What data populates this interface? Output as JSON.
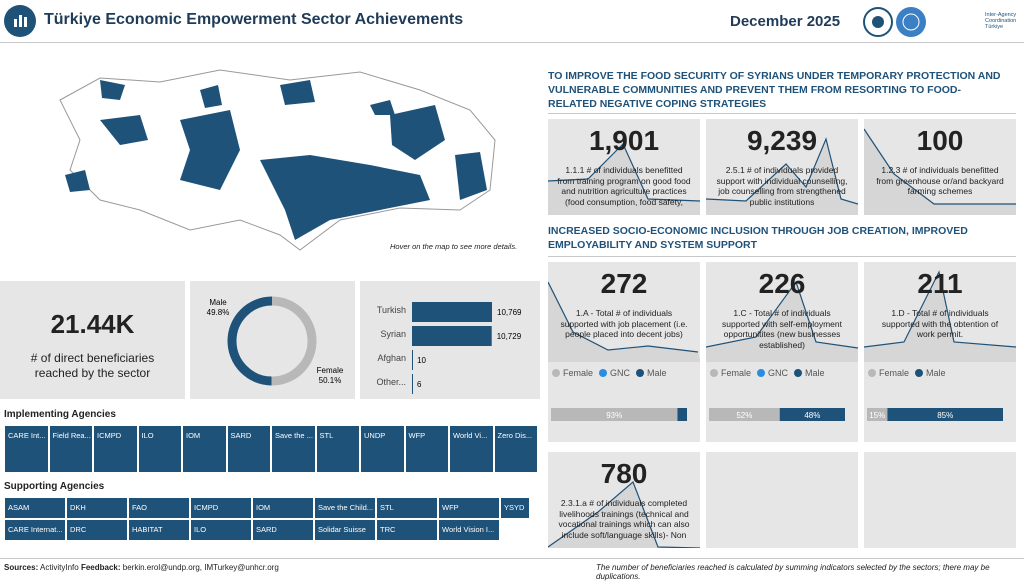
{
  "header": {
    "title": "Türkiye Economic Empowerment Sector Achievements",
    "date": "December 2025",
    "logo_text": "Inter-Agency Coordination Türkiye"
  },
  "map": {
    "note": "Hover on the map to see more details."
  },
  "total": {
    "value": "21.44K",
    "label": "# of direct beneficiaries reached by the sector"
  },
  "gender_chart": {
    "type": "pie",
    "categories": [
      "Male",
      "Female"
    ],
    "values": [
      49.8,
      50.1
    ],
    "value_labels": [
      "49.8%",
      "50.1%"
    ],
    "colors": [
      "#1f5279",
      "#b8b8b8"
    ]
  },
  "nationality_chart": {
    "type": "bar",
    "categories": [
      "Turkish",
      "Syrian",
      "Afghan",
      "Other..."
    ],
    "values": [
      10769,
      10729,
      10,
      6
    ],
    "value_labels": [
      "10,769",
      "10,729",
      "10",
      "6"
    ],
    "color": "#1f5279"
  },
  "implementing": {
    "title": "Implementing Agencies",
    "items": [
      "CARE Int...",
      "Field Rea...",
      "ICMPD",
      "ILO",
      "IOM",
      "SARD",
      "Save the ...",
      "STL",
      "UNDP",
      "WFP",
      "World Vi...",
      "Zero Dis..."
    ]
  },
  "supporting": {
    "title": "Supporting Agencies",
    "rows": [
      [
        "ASAM",
        "DKH",
        "FAO",
        "ICMPD",
        "IOM",
        "Save the Child...",
        "STL",
        "WFP",
        "YSYD"
      ],
      [
        "CARE Internat...",
        "DRC",
        "HABITAT",
        "ILO",
        "SARD",
        "Solidar Suisse",
        "TRC",
        "World Vision I..."
      ]
    ]
  },
  "sections": [
    {
      "title": "TO IMPROVE THE FOOD SECURITY OF SYRIANS UNDER TEMPORARY PROTECTION AND VULNERABLE COMMUNITIES AND PREVENT THEM FROM RESORTING TO FOOD-RELATED NEGATIVE COPING STRATEGIES",
      "cards": [
        {
          "value": "1,901",
          "label": "1.1.1 # of individuals benefitted from training program on good food and nutrition agriculture practices (food consumption, food safety, nutrition, cooking demonstration)"
        },
        {
          "value": "9,239",
          "label": "2.5.1 # of individuals provided support with individual counselling, job counselling from strengthened public institutions"
        },
        {
          "value": "100",
          "label": "1.2.3 # of individuals benefitted from greenhouse or/and backyard farming schemes"
        }
      ]
    },
    {
      "title": "INCREASED SOCIO-ECONOMIC INCLUSION THROUGH JOB CREATION, IMPROVED EMPLOYABILITY AND SYSTEM SUPPORT",
      "cards": [
        {
          "value": "272",
          "label": "1.A - Total # of individuals supported with job placement (i.e. people placed into decent jobs)",
          "legend": [
            {
              "name": "Female",
              "color": "#b8b8b8"
            },
            {
              "name": "GNC",
              "color": "#2a8de0"
            },
            {
              "name": "Male",
              "color": "#1f5279"
            }
          ],
          "bar": {
            "type": "bar",
            "values": [
              93,
              7
            ],
            "value_labels": [
              "93%",
              null
            ],
            "colors": [
              "#b8b8b8",
              "#1f5279"
            ]
          }
        },
        {
          "value": "226",
          "label": "1.C - Total # of individuals supported with self-employment opportunitites (new businesses established)",
          "legend": [
            {
              "name": "Female",
              "color": "#b8b8b8"
            },
            {
              "name": "GNC",
              "color": "#2a8de0"
            },
            {
              "name": "Male",
              "color": "#1f5279"
            }
          ],
          "bar": {
            "type": "bar",
            "values": [
              52,
              48
            ],
            "value_labels": [
              "52%",
              "48%"
            ],
            "colors": [
              "#b8b8b8",
              "#1f5279"
            ]
          }
        },
        {
          "value": "211",
          "label": "1.D - Total # of individuals supported with the obtention of work permit.",
          "legend": [
            {
              "name": "Female",
              "color": "#b8b8b8"
            },
            {
              "name": "Male",
              "color": "#1f5279"
            }
          ],
          "bar": {
            "type": "bar",
            "values": [
              15,
              85
            ],
            "value_labels": [
              "15%",
              "85%"
            ],
            "colors": [
              "#b8b8b8",
              "#1f5279"
            ]
          }
        },
        {
          "value": "780",
          "label": "2.3.1.a # of individuals completed livelihoods trainings (technical and vocational trainings which can also include soft/language skills)- Non agricultural"
        }
      ]
    }
  ],
  "footer": {
    "sources_label": "Sources:",
    "sources": "ActivityInfo",
    "feedback_label": "Feedback:",
    "feedback": "berkin.erol@undp.org, IMTurkey@unhcr.org",
    "note": "The number of beneficiaries reached is calculated by summing indicators selected by the sectors; there may be duplications."
  }
}
